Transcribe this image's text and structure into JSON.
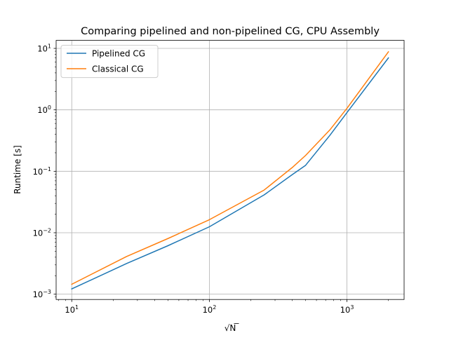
{
  "chart_data": {
    "type": "line",
    "title": "Comparing pipelined and non-pipelined CG, CPU Assembly",
    "xlabel": "√N",
    "ylabel": "Runtime [s]",
    "xscale": "log",
    "yscale": "log",
    "xlim": [
      7.7,
      2600
    ],
    "ylim": [
      0.00082,
      13.5
    ],
    "xticks": [
      {
        "value": 10,
        "base": "10",
        "exp": "1"
      },
      {
        "value": 100,
        "base": "10",
        "exp": "2"
      },
      {
        "value": 1000,
        "base": "10",
        "exp": "3"
      }
    ],
    "yticks": [
      {
        "value": 0.001,
        "base": "10",
        "exp": "−3"
      },
      {
        "value": 0.01,
        "base": "10",
        "exp": "−2"
      },
      {
        "value": 0.1,
        "base": "10",
        "exp": "−1"
      },
      {
        "value": 1,
        "base": "10",
        "exp": "0"
      },
      {
        "value": 10,
        "base": "10",
        "exp": "1"
      }
    ],
    "grid": true,
    "legend_position": "top-left",
    "series": [
      {
        "name": "Pipelined CG",
        "color": "#1f77b4",
        "x": [
          10,
          25,
          50,
          100,
          250,
          400,
          500,
          750,
          1000,
          2000
        ],
        "y": [
          0.00122,
          0.00315,
          0.00615,
          0.0125,
          0.0413,
          0.0882,
          0.125,
          0.383,
          0.903,
          7.0
        ]
      },
      {
        "name": "Classical CG",
        "color": "#ff7f0e",
        "x": [
          10,
          25,
          50,
          100,
          250,
          400,
          500,
          750,
          1000,
          2000
        ],
        "y": [
          0.00145,
          0.0041,
          0.00805,
          0.0163,
          0.0495,
          0.115,
          0.181,
          0.47,
          1.06,
          8.8
        ]
      }
    ]
  }
}
